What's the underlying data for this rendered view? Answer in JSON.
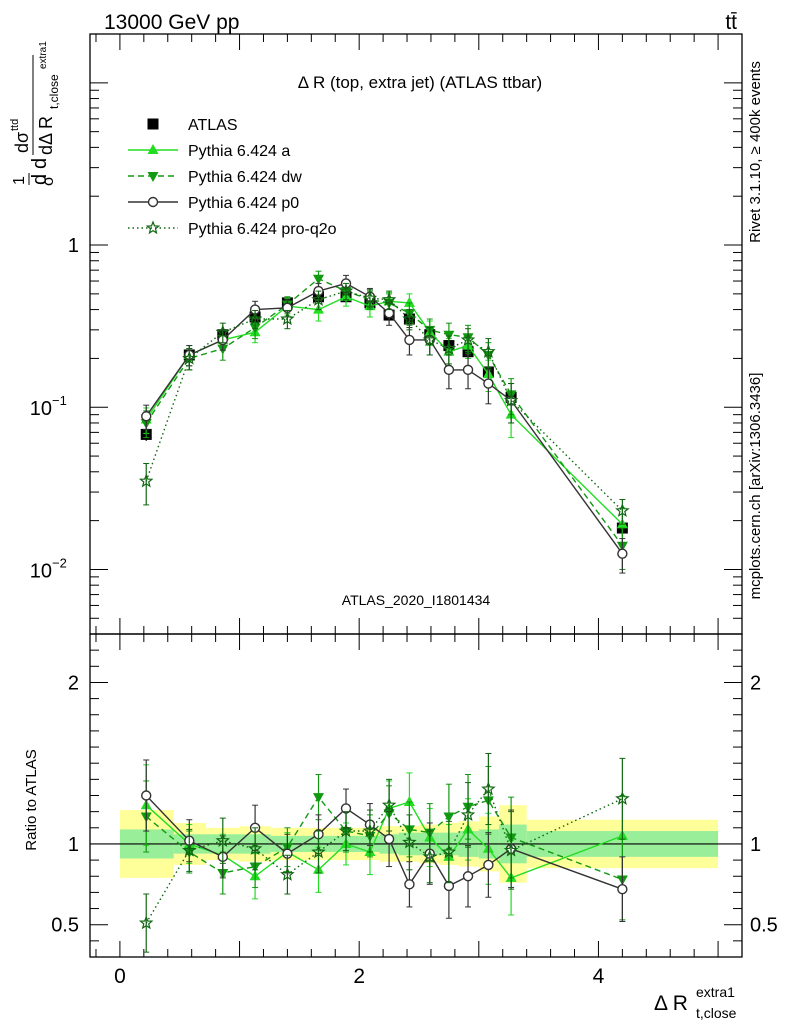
{
  "header": {
    "energy": "13000 GeV pp",
    "process": "tt̄"
  },
  "side_labels": {
    "rivet": "Rivet 3.1.10, ≥ 400k events",
    "mcplots": "mcplots.cern.ch [arXiv:1306.3436]"
  },
  "chart_data": [
    {
      "type": "scatter",
      "title": "Δ R (top, extra jet) (ATLAS ttbar)",
      "watermark": "ATLAS_2020_I1801434",
      "ylabel": "1/σ dσ/dΔ R (t,close, extra1)",
      "ylabel_parts": {
        "frac": "d",
        "sigma": "σ",
        "num": "dσ",
        "num_sup": "ttd",
        "den": "dΔ R",
        "den_sub": "t,close",
        "den_sup": "extra1"
      },
      "yscale": "log",
      "xlim": [
        -0.25,
        5.2
      ],
      "ylim": [
        0.004,
        20
      ],
      "y_ticks": [
        {
          "value": 0.01,
          "base": "10",
          "exp": "−2"
        },
        {
          "value": 0.1,
          "base": "10",
          "exp": "−1"
        },
        {
          "value": 1,
          "base": "1",
          "exp": ""
        }
      ],
      "legend_position": "top-left",
      "x": [
        0.22,
        0.58,
        0.86,
        1.13,
        1.4,
        1.66,
        1.89,
        2.09,
        2.25,
        2.42,
        2.59,
        2.75,
        2.91,
        3.08,
        3.27,
        4.2
      ],
      "series": [
        {
          "name": "ATLAS",
          "color": "#000000",
          "marker": "square",
          "line": "none",
          "values": [
            0.068,
            0.21,
            0.28,
            0.36,
            0.44,
            0.48,
            0.48,
            0.44,
            0.37,
            0.35,
            0.28,
            0.24,
            0.22,
            0.165,
            0.115,
            0.018
          ],
          "errors": [
            0.006,
            0.015,
            0.02,
            0.025,
            0.03,
            0.035,
            0.035,
            0.03,
            0.03,
            0.03,
            0.025,
            0.02,
            0.02,
            0.015,
            0.012,
            0.002
          ]
        },
        {
          "name": "Pythia 6.424 a",
          "color": "#22dd22",
          "marker": "triangle-up",
          "line": "solid",
          "values": [
            0.084,
            0.21,
            0.26,
            0.29,
            0.42,
            0.4,
            0.48,
            0.42,
            0.45,
            0.44,
            0.29,
            0.22,
            0.24,
            0.16,
            0.09,
            0.019
          ],
          "errors": [
            0.015,
            0.03,
            0.035,
            0.04,
            0.05,
            0.06,
            0.06,
            0.06,
            0.06,
            0.06,
            0.05,
            0.045,
            0.04,
            0.035,
            0.025,
            0.005
          ]
        },
        {
          "name": "Pythia 6.424 dw",
          "color": "#119911",
          "marker": "triangle-down",
          "line": "dashed",
          "values": [
            0.08,
            0.2,
            0.23,
            0.31,
            0.43,
            0.62,
            0.52,
            0.46,
            0.44,
            0.38,
            0.3,
            0.28,
            0.27,
            0.21,
            0.12,
            0.014
          ],
          "errors": [
            0.015,
            0.03,
            0.035,
            0.045,
            0.05,
            0.07,
            0.06,
            0.06,
            0.06,
            0.06,
            0.05,
            0.05,
            0.05,
            0.04,
            0.03,
            0.004
          ]
        },
        {
          "name": "Pythia 6.424 p0",
          "color": "#333333",
          "marker": "circle-open",
          "line": "solid",
          "values": [
            0.088,
            0.21,
            0.26,
            0.4,
            0.41,
            0.52,
            0.58,
            0.48,
            0.38,
            0.26,
            0.26,
            0.17,
            0.17,
            0.14,
            0.11,
            0.0125
          ],
          "errors": [
            0.015,
            0.03,
            0.035,
            0.05,
            0.05,
            0.06,
            0.07,
            0.06,
            0.06,
            0.05,
            0.05,
            0.04,
            0.04,
            0.035,
            0.03,
            0.003
          ]
        },
        {
          "name": "Pythia 6.424 pro-q2o",
          "color": "#116611",
          "marker": "star-open",
          "line": "dotted",
          "values": [
            0.035,
            0.2,
            0.29,
            0.35,
            0.35,
            0.46,
            0.52,
            0.47,
            0.46,
            0.35,
            0.26,
            0.23,
            0.26,
            0.22,
            0.11,
            0.023
          ],
          "errors": [
            0.01,
            0.03,
            0.04,
            0.045,
            0.045,
            0.06,
            0.06,
            0.06,
            0.06,
            0.05,
            0.05,
            0.045,
            0.045,
            0.045,
            0.03,
            0.004
          ]
        }
      ]
    },
    {
      "type": "scatter",
      "title": "",
      "xlabel": "Δ R (t,close, extra1)",
      "xlabel_parts": {
        "main": "Δ R",
        "sub": "t,close",
        "sup": "extra1"
      },
      "ylabel": "Ratio to ATLAS",
      "xlim": [
        -0.25,
        5.2
      ],
      "ylim": [
        0.3,
        2.3
      ],
      "x_ticks": [
        0,
        2,
        4
      ],
      "y_ticks": [
        0.5,
        1,
        2
      ],
      "bins": [
        {
          "lo": 0.0,
          "hi": 0.45,
          "stat": 0.09,
          "total": 0.21
        },
        {
          "lo": 0.45,
          "hi": 0.72,
          "stat": 0.06,
          "total": 0.13
        },
        {
          "lo": 0.72,
          "hi": 1.0,
          "stat": 0.06,
          "total": 0.1
        },
        {
          "lo": 1.0,
          "hi": 1.26,
          "stat": 0.06,
          "total": 0.11
        },
        {
          "lo": 1.26,
          "hi": 1.53,
          "stat": 0.05,
          "total": 0.1
        },
        {
          "lo": 1.53,
          "hi": 1.78,
          "stat": 0.05,
          "total": 0.1
        },
        {
          "lo": 1.78,
          "hi": 2.0,
          "stat": 0.05,
          "total": 0.1
        },
        {
          "lo": 2.0,
          "hi": 2.17,
          "stat": 0.05,
          "total": 0.1
        },
        {
          "lo": 2.17,
          "hi": 2.33,
          "stat": 0.06,
          "total": 0.11
        },
        {
          "lo": 2.33,
          "hi": 2.5,
          "stat": 0.07,
          "total": 0.11
        },
        {
          "lo": 2.5,
          "hi": 2.67,
          "stat": 0.07,
          "total": 0.12
        },
        {
          "lo": 2.67,
          "hi": 2.83,
          "stat": 0.07,
          "total": 0.13
        },
        {
          "lo": 2.83,
          "hi": 3.0,
          "stat": 0.08,
          "total": 0.14
        },
        {
          "lo": 3.0,
          "hi": 3.17,
          "stat": 0.09,
          "total": 0.17
        },
        {
          "lo": 3.17,
          "hi": 3.4,
          "stat": 0.12,
          "total": 0.24
        },
        {
          "lo": 3.4,
          "hi": 5.0,
          "stat": 0.08,
          "total": 0.15
        }
      ],
      "series": [
        {
          "name": "Pythia 6.424 a",
          "values": [
            1.24,
            1.0,
            0.93,
            0.8,
            0.95,
            0.84,
            1.0,
            0.95,
            1.22,
            1.26,
            1.04,
            0.92,
            1.09,
            0.97,
            0.79,
            1.05
          ]
        },
        {
          "name": "Pythia 6.424 dw",
          "values": [
            1.17,
            0.95,
            0.82,
            0.86,
            0.98,
            1.29,
            1.08,
            1.05,
            1.19,
            1.09,
            1.07,
            1.17,
            1.23,
            1.27,
            1.04,
            0.78
          ]
        },
        {
          "name": "Pythia 6.424 p0",
          "values": [
            1.3,
            1.02,
            0.92,
            1.1,
            0.94,
            1.06,
            1.22,
            1.12,
            1.03,
            0.75,
            0.94,
            0.74,
            0.8,
            0.87,
            0.97,
            0.72
          ]
        },
        {
          "name": "Pythia 6.424 pro-q2o",
          "values": [
            0.51,
            0.96,
            1.02,
            0.97,
            0.81,
            0.95,
            1.08,
            1.08,
            1.24,
            1.01,
            0.92,
            0.95,
            1.18,
            1.34,
            0.96,
            1.28
          ]
        }
      ],
      "series_errors": [
        [
          0.25,
          0.12,
          0.13,
          0.14,
          0.12,
          0.14,
          0.13,
          0.14,
          0.17,
          0.18,
          0.18,
          0.2,
          0.19,
          0.22,
          0.23,
          0.25
        ],
        [
          0.22,
          0.13,
          0.13,
          0.13,
          0.12,
          0.14,
          0.13,
          0.13,
          0.17,
          0.17,
          0.18,
          0.2,
          0.2,
          0.21,
          0.25,
          0.25
        ],
        [
          0.22,
          0.13,
          0.13,
          0.14,
          0.12,
          0.12,
          0.12,
          0.13,
          0.17,
          0.14,
          0.19,
          0.2,
          0.19,
          0.2,
          0.24,
          0.2
        ],
        [
          0.18,
          0.13,
          0.14,
          0.13,
          0.12,
          0.13,
          0.12,
          0.13,
          0.16,
          0.17,
          0.16,
          0.19,
          0.2,
          0.22,
          0.24,
          0.25
        ]
      ]
    }
  ]
}
